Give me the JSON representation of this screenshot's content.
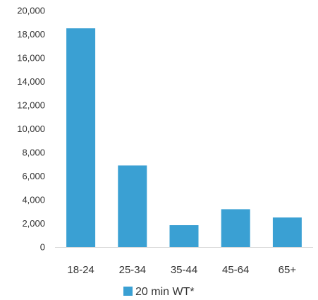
{
  "chart_data": {
    "type": "bar",
    "categories": [
      "18-24",
      "25-34",
      "35-44",
      "45-64",
      "65+"
    ],
    "series": [
      {
        "name": "20 min WT*",
        "values": [
          18500,
          6900,
          1850,
          3200,
          2500
        ],
        "color": "#3aa0d3"
      }
    ],
    "ylim": [
      0,
      20000
    ],
    "yticks": [
      "0",
      "2,000",
      "4,000",
      "6,000",
      "8,000",
      "10,000",
      "12,000",
      "14,000",
      "16,000",
      "18,000",
      "20,000"
    ],
    "ytick_values": [
      0,
      2000,
      4000,
      6000,
      8000,
      10000,
      12000,
      14000,
      16000,
      18000,
      20000
    ],
    "grid": false,
    "legend_position": "bottom",
    "axis_color": "#d9d9d9"
  }
}
